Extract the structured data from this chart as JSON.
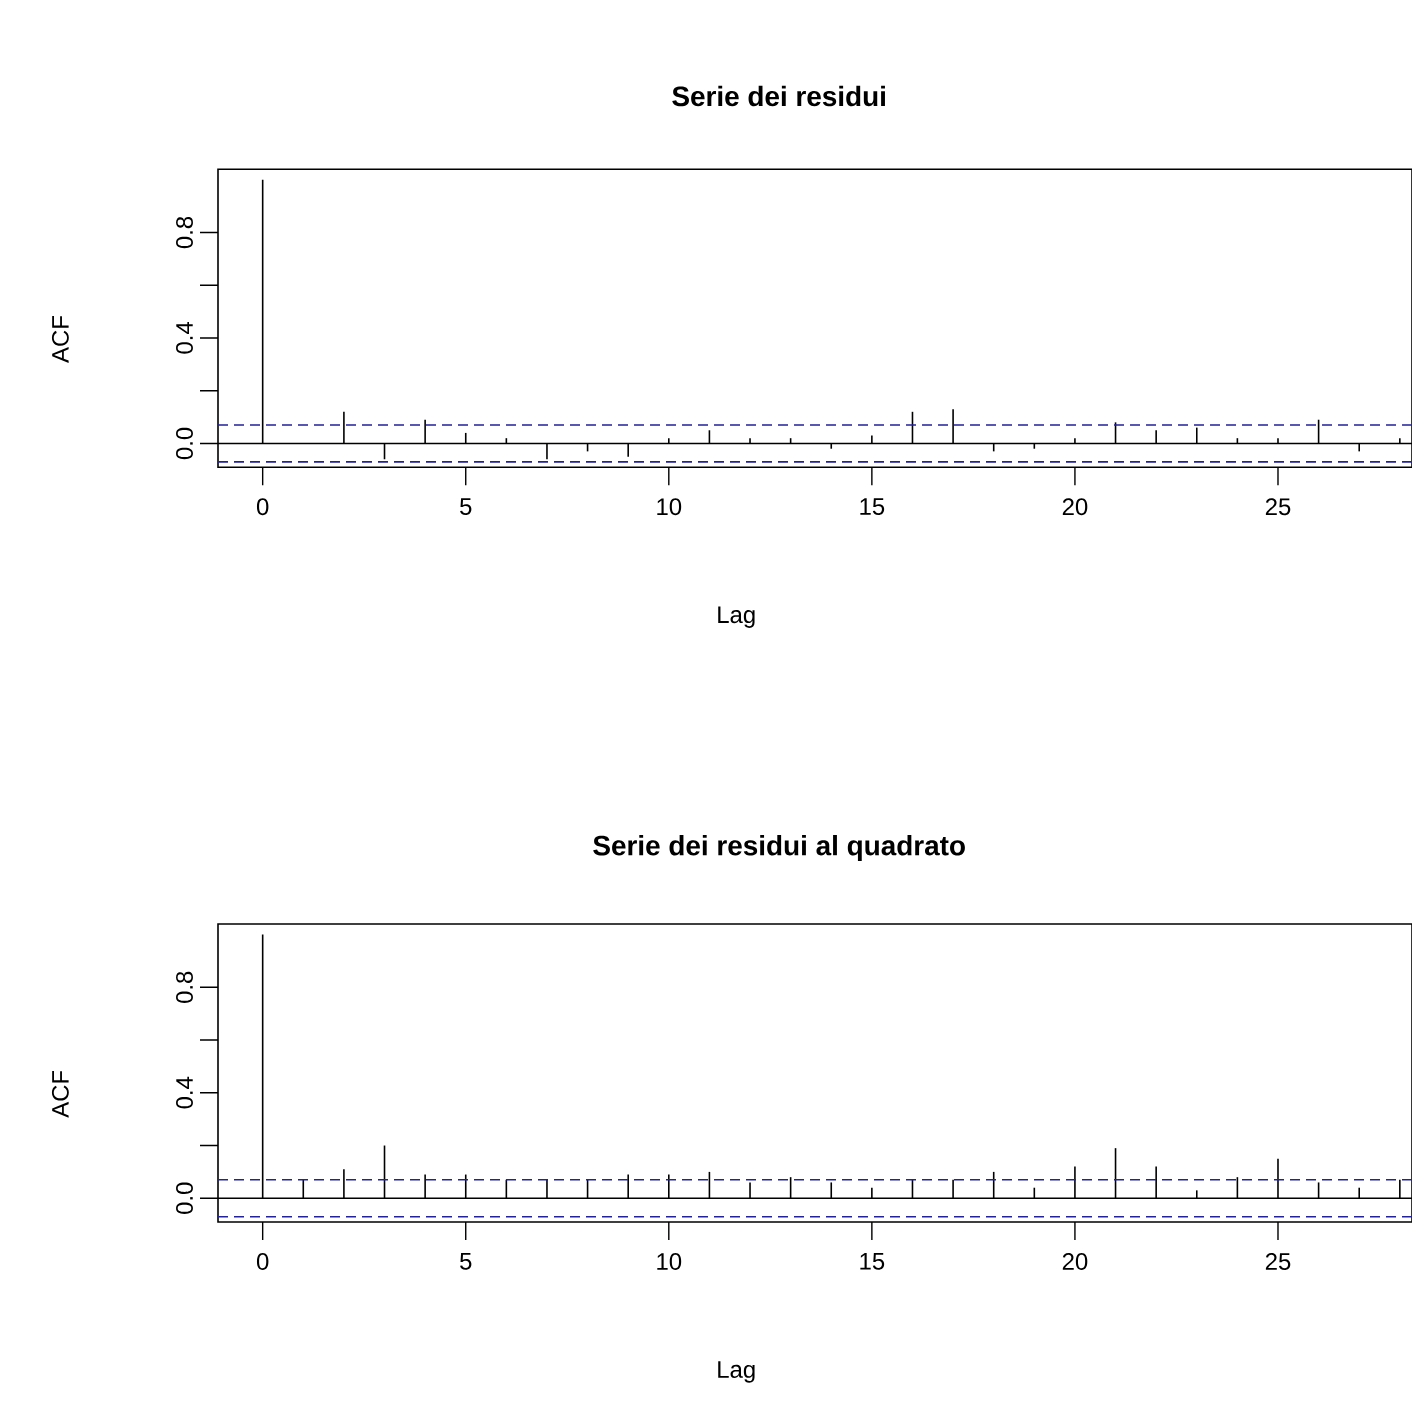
{
  "chart_data": [
    {
      "type": "bar",
      "title": "Serie dei residui",
      "xlabel": "Lag",
      "ylabel": "ACF",
      "x": [
        0,
        1,
        2,
        3,
        4,
        5,
        6,
        7,
        8,
        9,
        10,
        11,
        12,
        13,
        14,
        15,
        16,
        17,
        18,
        19,
        20,
        21,
        22,
        23,
        24,
        25,
        26,
        27,
        28
      ],
      "series": [
        {
          "color": "#000000",
          "values": [
            1.0,
            0.0,
            0.12,
            -0.06,
            0.09,
            0.04,
            0.02,
            -0.06,
            -0.03,
            -0.05,
            0.02,
            0.05,
            0.02,
            0.02,
            -0.02,
            0.03,
            0.12,
            0.13,
            -0.03,
            -0.02,
            0.02,
            0.08,
            0.05,
            0.06,
            0.02,
            0.02,
            0.09,
            -0.03,
            0.02
          ]
        }
      ],
      "xlim": [
        -1.1,
        28.3
      ],
      "ylim": [
        -0.09,
        1.04
      ],
      "xticks": [
        0,
        5,
        10,
        15,
        20,
        25
      ],
      "yticks": [
        {
          "value": 0,
          "label": "0.0"
        },
        {
          "value": 0.2,
          "label": null
        },
        {
          "value": 0.4,
          "label": "0.4"
        },
        {
          "value": 0.6,
          "label": null
        },
        {
          "value": 0.8,
          "label": "0.8"
        }
      ],
      "ref_lines": [
        {
          "axis": "y",
          "value": 0,
          "color": "#000000",
          "line_style": "solid"
        },
        {
          "axis": "y",
          "value": 0.07,
          "color": "#22229a",
          "line_style": "dashed"
        },
        {
          "axis": "y",
          "value": -0.07,
          "color": "#22229a",
          "line_style": "dashed"
        }
      ],
      "grid": false
    },
    {
      "type": "bar",
      "title": "Serie dei residui al quadrato",
      "xlabel": "Lag",
      "ylabel": "ACF",
      "x": [
        0,
        1,
        2,
        3,
        4,
        5,
        6,
        7,
        8,
        9,
        10,
        11,
        12,
        13,
        14,
        15,
        16,
        17,
        18,
        19,
        20,
        21,
        22,
        23,
        24,
        25,
        26,
        27,
        28
      ],
      "series": [
        {
          "color": "#000000",
          "values": [
            1.0,
            0.07,
            0.11,
            0.2,
            0.09,
            0.09,
            0.07,
            0.07,
            0.07,
            0.09,
            0.09,
            0.1,
            0.06,
            0.08,
            0.06,
            0.04,
            0.07,
            0.07,
            0.1,
            0.04,
            0.12,
            0.19,
            0.12,
            0.03,
            0.08,
            0.15,
            0.06,
            0.04,
            0.07
          ]
        }
      ],
      "xlim": [
        -1.1,
        28.3
      ],
      "ylim": [
        -0.09,
        1.04
      ],
      "xticks": [
        0,
        5,
        10,
        15,
        20,
        25
      ],
      "yticks": [
        {
          "value": 0,
          "label": "0.0"
        },
        {
          "value": 0.2,
          "label": null
        },
        {
          "value": 0.4,
          "label": "0.4"
        },
        {
          "value": 0.6,
          "label": null
        },
        {
          "value": 0.8,
          "label": "0.8"
        }
      ],
      "ref_lines": [
        {
          "axis": "y",
          "value": 0,
          "color": "#000000",
          "line_style": "solid"
        },
        {
          "axis": "y",
          "value": 0.07,
          "color": "#22229a",
          "line_style": "dashed"
        },
        {
          "axis": "y",
          "value": -0.07,
          "color": "#22229a",
          "line_style": "dashed"
        }
      ],
      "grid": false
    }
  ]
}
